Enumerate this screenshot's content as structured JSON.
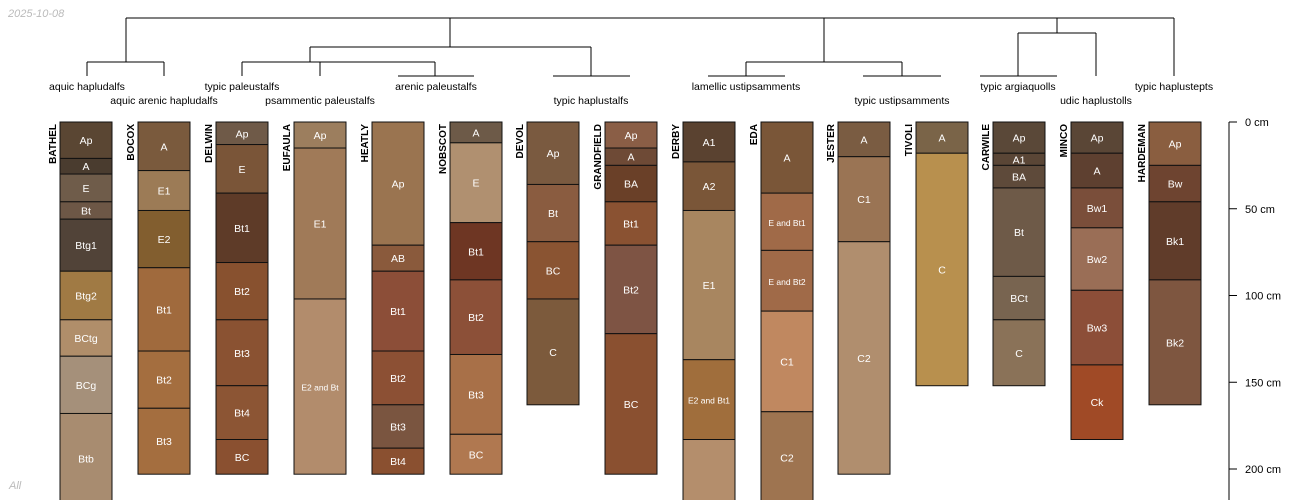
{
  "date_stamp": "2025-10-08",
  "corner_label": "All",
  "depth_axis": {
    "ticks": [
      0,
      50,
      100,
      150,
      200
    ],
    "unit": "cm"
  },
  "taxa": [
    "aquic hapludalfs",
    "aquic arenic hapludalfs",
    "typic paleustalfs",
    "psammentic paleustalfs",
    "arenic paleustalfs",
    "typic haplustalfs",
    "lamellic ustipsamments",
    "typic ustipsamments",
    "typic argiaquolls",
    "udic haplustolls",
    "typic haplustepts"
  ],
  "profiles": [
    {
      "name": "BATHEL",
      "horizons": [
        {
          "name": "Ap",
          "top": 0,
          "bottom": 21,
          "color": "#5a4633"
        },
        {
          "name": "A",
          "top": 21,
          "bottom": 30,
          "color": "#4a3c2f"
        },
        {
          "name": "E",
          "top": 30,
          "bottom": 46,
          "color": "#6f5c4a"
        },
        {
          "name": "Bt",
          "top": 46,
          "bottom": 56,
          "color": "#6d5746"
        },
        {
          "name": "Btg1",
          "top": 56,
          "bottom": 86,
          "color": "#514338"
        },
        {
          "name": "Btg2",
          "top": 86,
          "bottom": 114,
          "color": "#a07a44"
        },
        {
          "name": "BCtg",
          "top": 114,
          "bottom": 135,
          "color": "#b08e6a"
        },
        {
          "name": "BCg",
          "top": 135,
          "bottom": 168,
          "color": "#a5907a"
        },
        {
          "name": "Btb",
          "top": 168,
          "bottom": 220,
          "color": "#a88c70"
        }
      ]
    },
    {
      "name": "BOCOX",
      "horizons": [
        {
          "name": "A",
          "top": 0,
          "bottom": 28,
          "color": "#7a5a3d"
        },
        {
          "name": "E1",
          "top": 28,
          "bottom": 51,
          "color": "#9c7b56"
        },
        {
          "name": "E2",
          "top": 51,
          "bottom": 84,
          "color": "#825e2f"
        },
        {
          "name": "Bt1",
          "top": 84,
          "bottom": 132,
          "color": "#a06a3d"
        },
        {
          "name": "Bt2",
          "top": 132,
          "bottom": 165,
          "color": "#a46e3f"
        },
        {
          "name": "Bt3",
          "top": 165,
          "bottom": 203,
          "color": "#a46e3f"
        }
      ]
    },
    {
      "name": "DELWIN",
      "horizons": [
        {
          "name": "Ap",
          "top": 0,
          "bottom": 13,
          "color": "#6f5a48"
        },
        {
          "name": "E",
          "top": 13,
          "bottom": 41,
          "color": "#7a5538"
        },
        {
          "name": "Bt1",
          "top": 41,
          "bottom": 81,
          "color": "#5e3b28"
        },
        {
          "name": "Bt2",
          "top": 81,
          "bottom": 114,
          "color": "#88512f"
        },
        {
          "name": "Bt3",
          "top": 114,
          "bottom": 152,
          "color": "#8a5232"
        },
        {
          "name": "Bt4",
          "top": 152,
          "bottom": 183,
          "color": "#8c5534"
        },
        {
          "name": "BC",
          "top": 183,
          "bottom": 203,
          "color": "#8a5030"
        }
      ]
    },
    {
      "name": "EUFAULA",
      "horizons": [
        {
          "name": "Ap",
          "top": 0,
          "bottom": 15,
          "color": "#9c7e5e"
        },
        {
          "name": "E1",
          "top": 15,
          "bottom": 102,
          "color": "#a07a58"
        },
        {
          "name": "E2 and Bt",
          "top": 102,
          "bottom": 203,
          "color": "#b28c6c"
        }
      ]
    },
    {
      "name": "HEATLY",
      "horizons": [
        {
          "name": "Ap",
          "top": 0,
          "bottom": 71,
          "color": "#9a7450"
        },
        {
          "name": "AB",
          "top": 71,
          "bottom": 86,
          "color": "#8a5a3c"
        },
        {
          "name": "Bt1",
          "top": 86,
          "bottom": 132,
          "color": "#8c4e38"
        },
        {
          "name": "Bt2",
          "top": 132,
          "bottom": 163,
          "color": "#8c5034"
        },
        {
          "name": "Bt3",
          "top": 163,
          "bottom": 188,
          "color": "#7a5540"
        },
        {
          "name": "Bt4",
          "top": 188,
          "bottom": 203,
          "color": "#8a5030"
        }
      ]
    },
    {
      "name": "NOBSCOT",
      "horizons": [
        {
          "name": "A",
          "top": 0,
          "bottom": 12,
          "color": "#6d5a48"
        },
        {
          "name": "E",
          "top": 12,
          "bottom": 58,
          "color": "#b09070"
        },
        {
          "name": "Bt1",
          "top": 58,
          "bottom": 91,
          "color": "#6e3623"
        },
        {
          "name": "Bt2",
          "top": 91,
          "bottom": 134,
          "color": "#8c5038"
        },
        {
          "name": "Bt3",
          "top": 134,
          "bottom": 180,
          "color": "#a87048"
        },
        {
          "name": "BC",
          "top": 180,
          "bottom": 203,
          "color": "#b07850"
        }
      ]
    },
    {
      "name": "DEVOL",
      "horizons": [
        {
          "name": "Ap",
          "top": 0,
          "bottom": 36,
          "color": "#7a5a40"
        },
        {
          "name": "Bt",
          "top": 36,
          "bottom": 69,
          "color": "#8a5c40"
        },
        {
          "name": "BC",
          "top": 69,
          "bottom": 102,
          "color": "#8a5432"
        },
        {
          "name": "C",
          "top": 102,
          "bottom": 163,
          "color": "#7c5a3c"
        }
      ]
    },
    {
      "name": "GRANDFIELD",
      "horizons": [
        {
          "name": "Ap",
          "top": 0,
          "bottom": 15,
          "color": "#8a5e46"
        },
        {
          "name": "A",
          "top": 15,
          "bottom": 25,
          "color": "#6e4a36"
        },
        {
          "name": "BA",
          "top": 25,
          "bottom": 46,
          "color": "#6a4028"
        },
        {
          "name": "Bt1",
          "top": 46,
          "bottom": 71,
          "color": "#8a5232"
        },
        {
          "name": "Bt2",
          "top": 71,
          "bottom": 122,
          "color": "#7e5444"
        },
        {
          "name": "BC",
          "top": 122,
          "bottom": 203,
          "color": "#8a5030"
        }
      ]
    },
    {
      "name": "DERBY",
      "horizons": [
        {
          "name": "A1",
          "top": 0,
          "bottom": 23,
          "color": "#5a4230"
        },
        {
          "name": "A2",
          "top": 23,
          "bottom": 51,
          "color": "#7a5638"
        },
        {
          "name": "E1",
          "top": 51,
          "bottom": 137,
          "color": "#a88660"
        },
        {
          "name": "E2 and Bt1",
          "top": 137,
          "bottom": 183,
          "color": "#a06e3c"
        },
        {
          "name": "",
          "top": 183,
          "bottom": 220,
          "color": "#b48e6c"
        }
      ]
    },
    {
      "name": "EDA",
      "horizons": [
        {
          "name": "A",
          "top": 0,
          "bottom": 41,
          "color": "#7a5638"
        },
        {
          "name": "E and Bt1",
          "top": 41,
          "bottom": 74,
          "color": "#a06a48"
        },
        {
          "name": "E and Bt2",
          "top": 74,
          "bottom": 109,
          "color": "#a06a48"
        },
        {
          "name": "C1",
          "top": 109,
          "bottom": 167,
          "color": "#c08860"
        },
        {
          "name": "C2",
          "top": 167,
          "bottom": 220,
          "color": "#9e7450"
        }
      ]
    },
    {
      "name": "JESTER",
      "horizons": [
        {
          "name": "A",
          "top": 0,
          "bottom": 20,
          "color": "#7a5c42"
        },
        {
          "name": "C1",
          "top": 20,
          "bottom": 69,
          "color": "#9a7454"
        },
        {
          "name": "C2",
          "top": 69,
          "bottom": 203,
          "color": "#b08e6e"
        }
      ]
    },
    {
      "name": "TIVOLI",
      "horizons": [
        {
          "name": "A",
          "top": 0,
          "bottom": 18,
          "color": "#7a6448"
        },
        {
          "name": "C",
          "top": 18,
          "bottom": 152,
          "color": "#b8904e"
        }
      ]
    },
    {
      "name": "CARWILE",
      "horizons": [
        {
          "name": "Ap",
          "top": 0,
          "bottom": 18,
          "color": "#5a4838"
        },
        {
          "name": "A1",
          "top": 18,
          "bottom": 25,
          "color": "#5a4636"
        },
        {
          "name": "BA",
          "top": 25,
          "bottom": 38,
          "color": "#5e4a3a"
        },
        {
          "name": "Bt",
          "top": 38,
          "bottom": 89,
          "color": "#6e5a48"
        },
        {
          "name": "BCt",
          "top": 89,
          "bottom": 114,
          "color": "#786450"
        },
        {
          "name": "C",
          "top": 114,
          "bottom": 152,
          "color": "#8a7258"
        }
      ]
    },
    {
      "name": "MINCO",
      "horizons": [
        {
          "name": "Ap",
          "top": 0,
          "bottom": 18,
          "color": "#5a4636"
        },
        {
          "name": "A",
          "top": 18,
          "bottom": 38,
          "color": "#5e4030"
        },
        {
          "name": "Bw1",
          "top": 38,
          "bottom": 61,
          "color": "#7a4e3a"
        },
        {
          "name": "Bw2",
          "top": 61,
          "bottom": 97,
          "color": "#9a6e56"
        },
        {
          "name": "Bw3",
          "top": 97,
          "bottom": 140,
          "color": "#8c4e38"
        },
        {
          "name": "Ck",
          "top": 140,
          "bottom": 183,
          "color": "#a04a26"
        }
      ]
    },
    {
      "name": "HARDEMAN",
      "horizons": [
        {
          "name": "Ap",
          "top": 0,
          "bottom": 25,
          "color": "#8a5e40"
        },
        {
          "name": "Bw",
          "top": 25,
          "bottom": 46,
          "color": "#6e4430"
        },
        {
          "name": "Bk1",
          "top": 46,
          "bottom": 91,
          "color": "#603c2a"
        },
        {
          "name": "Bk2",
          "top": 91,
          "bottom": 163,
          "color": "#7e5640"
        }
      ]
    }
  ]
}
